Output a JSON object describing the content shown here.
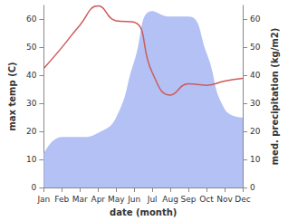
{
  "chart_data": {
    "type": "line",
    "xlabel": "date (month)",
    "ylabel": "max temp (C)",
    "y2label": "med. precipitation (kg/m2)",
    "categories": [
      "Jan",
      "Feb",
      "Mar",
      "Apr",
      "May",
      "Jun",
      "Jul",
      "Aug",
      "Sep",
      "Oct",
      "Nov",
      "Dec"
    ],
    "series": [
      {
        "type": "area",
        "axis": "y2",
        "color": "#b3c1f4",
        "values": [
          12,
          18,
          18,
          19.5,
          25,
          45,
          63,
          61,
          61,
          48,
          28,
          25
        ]
      },
      {
        "type": "line",
        "axis": "y",
        "color": "#cd5c5c",
        "values": [
          42.5,
          50,
          58,
          64.8,
          59.5,
          59,
          41,
          33,
          37,
          36.5,
          38,
          39
        ]
      }
    ],
    "ylim": [
      0,
      65
    ],
    "yticks": [
      0,
      10,
      20,
      30,
      40,
      50,
      60
    ],
    "y2lim": [
      0,
      65
    ],
    "y2ticks": [
      0,
      10,
      20,
      30,
      40,
      50,
      60
    ],
    "grid": false
  }
}
